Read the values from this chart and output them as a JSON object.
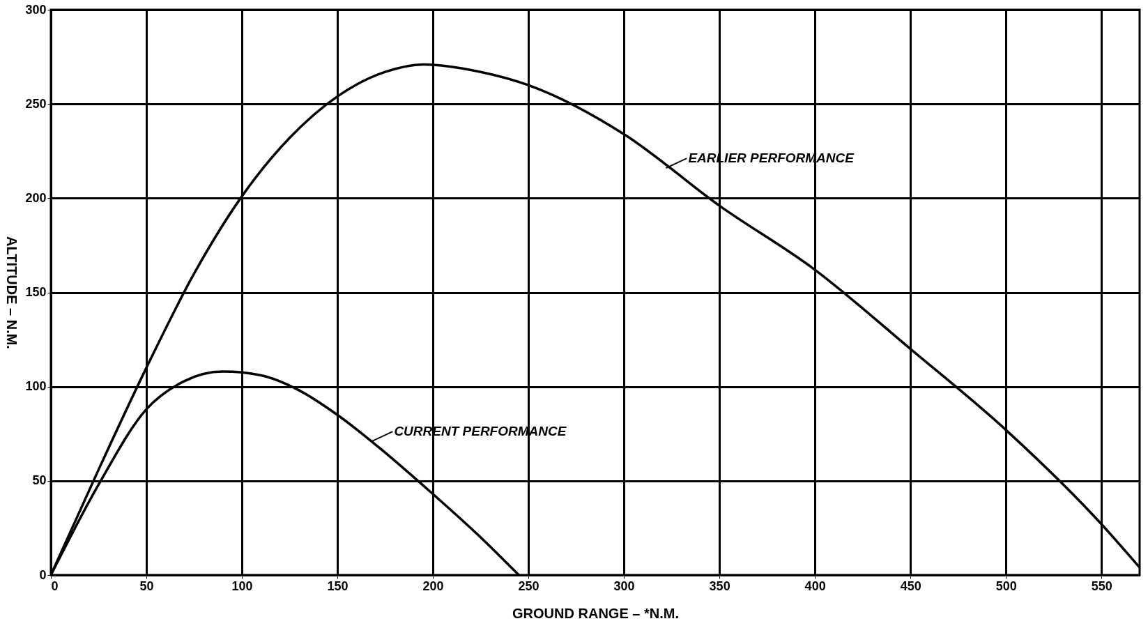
{
  "chart_data": {
    "type": "line",
    "xlabel": "GROUND RANGE – *N.M.",
    "ylabel": "ALTITUDE – N.M.",
    "xlim": [
      0,
      570
    ],
    "ylim": [
      0,
      300
    ],
    "xticks": [
      0,
      50,
      100,
      150,
      200,
      250,
      300,
      350,
      400,
      450,
      500,
      550
    ],
    "yticks": [
      0,
      50,
      100,
      150,
      200,
      250,
      300
    ],
    "grid": true,
    "line_style": "solid",
    "marker": "none",
    "series": [
      {
        "color": "#000000",
        "x": [
          0,
          25,
          50,
          75,
          100,
          125,
          150,
          175,
          195,
          225,
          250,
          300,
          350,
          400,
          450,
          500,
          550,
          570
        ],
        "values": [
          0,
          56,
          110,
          160,
          201,
          232,
          254,
          267,
          271,
          267,
          260,
          234,
          196,
          162,
          120,
          77,
          27,
          4
        ]
      },
      {
        "color": "#000000",
        "x": [
          0,
          25,
          50,
          70,
          90,
          110,
          130,
          150,
          175,
          200,
          225,
          245
        ],
        "values": [
          0,
          48,
          88,
          103,
          108,
          106,
          98,
          85,
          65,
          43,
          20,
          0
        ]
      }
    ],
    "annotations": [
      {
        "text": "EARLIER PERFORMANCE",
        "x": 322,
        "y": 216
      },
      {
        "text": "CURRENT PERFORMANCE",
        "x": 168,
        "y": 71
      }
    ]
  }
}
